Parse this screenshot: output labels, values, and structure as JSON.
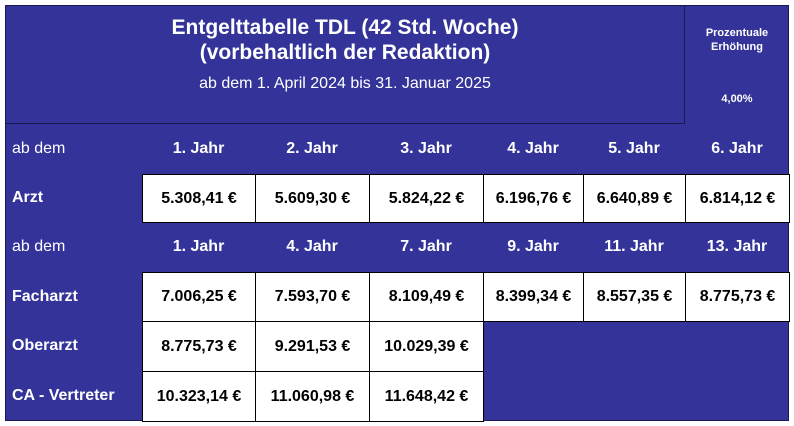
{
  "header": {
    "title": [
      "Entgelttabelle TDL (42 Std. Woche)",
      "(vorbehaltlich der Redaktion)"
    ],
    "period": "ab dem 1. April 2024  bis 31. Januar 2025",
    "increase_label": [
      "Prozentuale",
      "Erhöhung"
    ],
    "increase_value": "4,00%"
  },
  "table": {
    "rows": [
      {
        "kind": "head",
        "label": "ab dem",
        "cells": [
          "1. Jahr",
          "2. Jahr",
          "3. Jahr",
          "4. Jahr",
          "5. Jahr",
          "6. Jahr"
        ]
      },
      {
        "kind": "data",
        "label": "Arzt",
        "cells": [
          "5.308,41 €",
          "5.609,30 €",
          "5.824,22 €",
          "6.196,76 €",
          "6.640,89 €",
          "6.814,12 €"
        ]
      },
      {
        "kind": "head",
        "label": "ab dem",
        "cells": [
          "1. Jahr",
          "4. Jahr",
          "7. Jahr",
          "9. Jahr",
          "11. Jahr",
          "13. Jahr"
        ]
      },
      {
        "kind": "data",
        "label": "Facharzt",
        "cells": [
          "7.006,25 €",
          "7.593,70 €",
          "8.109,49 €",
          "8.399,34 €",
          "8.557,35 €",
          "8.775,73 €"
        ]
      },
      {
        "kind": "data",
        "label": "Oberarzt",
        "cells": [
          "8.775,73 €",
          "9.291,53 €",
          "10.029,39 €"
        ]
      },
      {
        "kind": "data",
        "label": "CA - Vertreter",
        "cells": [
          "10.323,14 €",
          "11.060,98 €",
          "11.648,42 €"
        ]
      }
    ]
  }
}
